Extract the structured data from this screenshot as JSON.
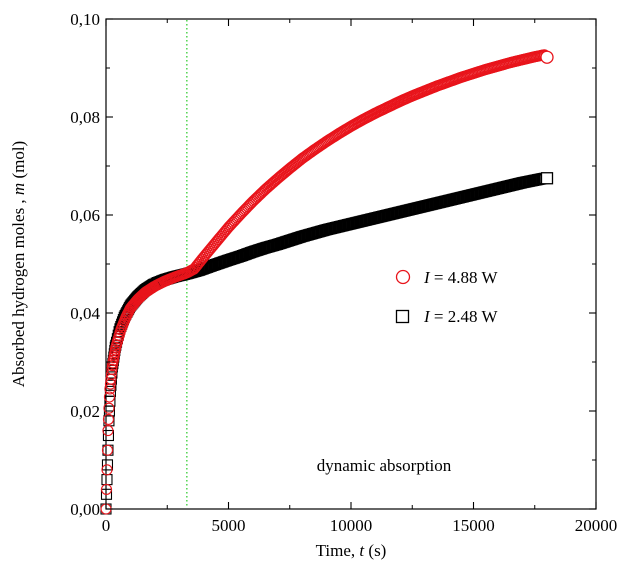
{
  "chart_data": {
    "type": "scatter",
    "xlabel_prefix": "Time, ",
    "xlabel_var": "t",
    "xlabel_unit": " (s)",
    "ylabel_prefix": "Absorbed hydrogen moles , ",
    "ylabel_var": "m",
    "ylabel_unit": " (mol)",
    "xlim": [
      0,
      20000
    ],
    "ylim": [
      0,
      0.1
    ],
    "x_ticks": [
      0,
      5000,
      10000,
      15000,
      20000
    ],
    "x_tick_labels": [
      "0",
      "5000",
      "10000",
      "15000",
      "20000"
    ],
    "y_ticks": [
      0,
      0.02,
      0.04,
      0.06,
      0.08,
      0.1
    ],
    "y_tick_labels": [
      "0,00",
      "0,02",
      "0,04",
      "0,06",
      "0,08",
      "0,10"
    ],
    "vline_x": 3300,
    "vline_color": "#33cc33",
    "annotation": "dynamic absorption",
    "legend_position": "center-right",
    "series": [
      {
        "var": "I",
        "name": " = 4.88 W",
        "marker": "circle",
        "color": "#e8141b",
        "points": [
          [
            0,
            0.0
          ],
          [
            40,
            0.008
          ],
          [
            80,
            0.016
          ],
          [
            150,
            0.024
          ],
          [
            250,
            0.029
          ],
          [
            400,
            0.033
          ],
          [
            600,
            0.0365
          ],
          [
            800,
            0.039
          ],
          [
            1000,
            0.041
          ],
          [
            1300,
            0.0428
          ],
          [
            1600,
            0.0442
          ],
          [
            2000,
            0.0455
          ],
          [
            2400,
            0.0465
          ],
          [
            2800,
            0.0473
          ],
          [
            3300,
            0.0482
          ],
          [
            3600,
            0.049
          ],
          [
            4000,
            0.0515
          ],
          [
            4500,
            0.0545
          ],
          [
            5000,
            0.0575
          ],
          [
            5500,
            0.0602
          ],
          [
            6000,
            0.0628
          ],
          [
            6500,
            0.0652
          ],
          [
            7000,
            0.0674
          ],
          [
            7500,
            0.0695
          ],
          [
            8000,
            0.0715
          ],
          [
            8500,
            0.0733
          ],
          [
            9000,
            0.075
          ],
          [
            9500,
            0.0766
          ],
          [
            10000,
            0.0781
          ],
          [
            10500,
            0.0795
          ],
          [
            11000,
            0.0808
          ],
          [
            11500,
            0.082
          ],
          [
            12000,
            0.0832
          ],
          [
            12500,
            0.0843
          ],
          [
            13000,
            0.0853
          ],
          [
            13500,
            0.0863
          ],
          [
            14000,
            0.0872
          ],
          [
            14500,
            0.0881
          ],
          [
            15000,
            0.0889
          ],
          [
            15500,
            0.0897
          ],
          [
            16000,
            0.0904
          ],
          [
            16500,
            0.0911
          ],
          [
            17000,
            0.0917
          ],
          [
            17500,
            0.0923
          ],
          [
            18000,
            0.0928
          ]
        ],
        "end_marker": [
          18000,
          0.0922
        ]
      },
      {
        "var": "I",
        "name": " = 2.48 W",
        "marker": "square",
        "color": "#000000",
        "points": [
          [
            0,
            0.0
          ],
          [
            40,
            0.006
          ],
          [
            80,
            0.012
          ],
          [
            120,
            0.018
          ],
          [
            180,
            0.024
          ],
          [
            260,
            0.029
          ],
          [
            380,
            0.033
          ],
          [
            550,
            0.0365
          ],
          [
            750,
            0.0392
          ],
          [
            1000,
            0.0415
          ],
          [
            1300,
            0.0433
          ],
          [
            1600,
            0.0447
          ],
          [
            2000,
            0.046
          ],
          [
            2400,
            0.0468
          ],
          [
            2800,
            0.0474
          ],
          [
            3300,
            0.048
          ],
          [
            3800,
            0.0487
          ],
          [
            4300,
            0.0496
          ],
          [
            5000,
            0.0508
          ],
          [
            5500,
            0.0516
          ],
          [
            6000,
            0.0525
          ],
          [
            6500,
            0.0533
          ],
          [
            7000,
            0.054
          ],
          [
            7500,
            0.0548
          ],
          [
            8000,
            0.0556
          ],
          [
            8500,
            0.0563
          ],
          [
            9000,
            0.057
          ],
          [
            9500,
            0.0576
          ],
          [
            10000,
            0.0582
          ],
          [
            10500,
            0.0588
          ],
          [
            11000,
            0.0594
          ],
          [
            11500,
            0.06
          ],
          [
            12000,
            0.0606
          ],
          [
            12500,
            0.0612
          ],
          [
            13000,
            0.0618
          ],
          [
            13500,
            0.0624
          ],
          [
            14000,
            0.063
          ],
          [
            14500,
            0.0636
          ],
          [
            15000,
            0.0642
          ],
          [
            15500,
            0.0648
          ],
          [
            16000,
            0.0654
          ],
          [
            16500,
            0.066
          ],
          [
            17000,
            0.0666
          ],
          [
            17500,
            0.0671
          ],
          [
            18000,
            0.0676
          ]
        ],
        "end_marker": [
          18000,
          0.0675
        ]
      }
    ]
  }
}
